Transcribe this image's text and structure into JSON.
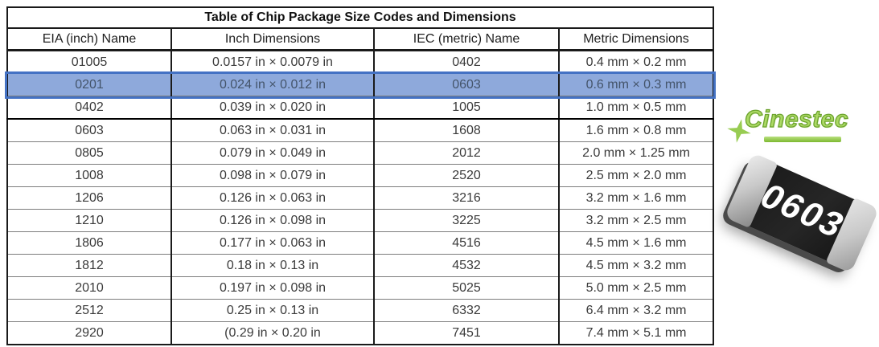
{
  "title": "Table of Chip Package Size Codes and Dimensions",
  "table": {
    "columns": [
      "EIA (inch) Name",
      "Inch Dimensions",
      "IEC (metric) Name",
      "Metric Dimensions"
    ],
    "rows": [
      [
        "01005",
        "0.0157 in × 0.0079 in",
        "0402",
        "0.4 mm × 0.2 mm"
      ],
      [
        "0201",
        "0.024 in × 0.012 in",
        "0603",
        "0.6 mm × 0.3 mm"
      ],
      [
        "0402",
        "0.039 in × 0.020 in",
        "1005",
        "1.0 mm × 0.5 mm"
      ],
      [
        "0603",
        "0.063 in × 0.031 in",
        "1608",
        "1.6 mm × 0.8 mm"
      ],
      [
        "0805",
        "0.079 in × 0.049 in",
        "2012",
        "2.0 mm × 1.25 mm"
      ],
      [
        "1008",
        "0.098 in × 0.079 in",
        "2520",
        "2.5 mm × 2.0 mm"
      ],
      [
        "1206",
        "0.126 in × 0.063 in",
        "3216",
        "3.2 mm × 1.6 mm"
      ],
      [
        "1210",
        "0.126 in × 0.098 in",
        "3225",
        "3.2 mm × 2.5 mm"
      ],
      [
        "1806",
        "0.177 in × 0.063 in",
        "4516",
        "4.5 mm × 1.6 mm"
      ],
      [
        "1812",
        "0.18 in × 0.13 in",
        "4532",
        "4.5 mm × 3.2 mm"
      ],
      [
        "2010",
        "0.197 in × 0.098 in",
        "5025",
        "5.0 mm × 2.5 mm"
      ],
      [
        "2512",
        "0.25 in × 0.13 in",
        "6332",
        "6.4 mm × 3.2 mm"
      ],
      [
        "2920",
        "(0.29 in × 0.20 in",
        "7451",
        "7.4 mm × 5.1 mm"
      ]
    ],
    "highlighted_row_index": 1,
    "thick_separator_after_row_index": 2
  },
  "logo": {
    "text": "Cinestec"
  },
  "chip": {
    "label": "0603"
  },
  "colors": {
    "highlight_fill": "#8EA9DB",
    "highlight_border": "#4472C4",
    "highlight_text": "#44546A",
    "logo_green": "#8DC63F",
    "chip_body": "#262626",
    "chip_cap": "#C9C9C9",
    "table_border": "#1A1A1A"
  }
}
